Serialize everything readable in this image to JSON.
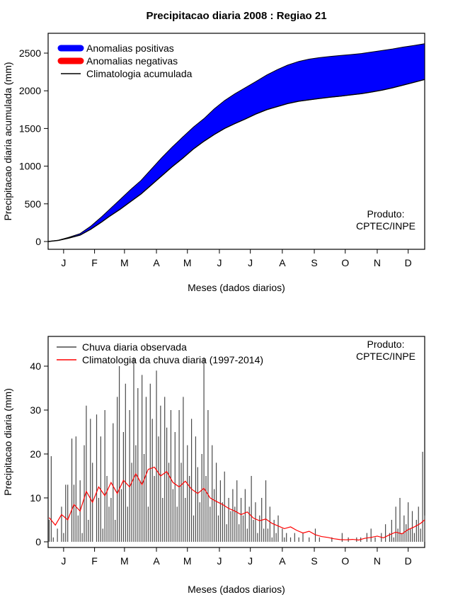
{
  "page": {
    "title": "Precipitacao diaria 2008 : Regiao 21"
  },
  "chart_data": [
    {
      "type": "area",
      "title": "Precipitacao diaria 2008 : Regiao 21",
      "xlabel": "Meses (dados diarios)",
      "ylabel": "Precipitacao diaria acumulada (mm)",
      "x_tick_labels": [
        "J",
        "F",
        "M",
        "A",
        "M",
        "J",
        "J",
        "A",
        "S",
        "O",
        "N",
        "D"
      ],
      "x_tick_days": [
        15,
        45,
        74,
        105,
        135,
        166,
        196,
        227,
        258,
        288,
        319,
        349
      ],
      "y_ticks": [
        0,
        500,
        1000,
        1500,
        2000,
        2500
      ],
      "xlim": [
        0,
        365
      ],
      "ylim": [
        0,
        2700
      ],
      "grid": false,
      "legend_position": "top-left",
      "legend": [
        {
          "label": "Anomalias positivas",
          "color": "#0000FF",
          "sample": "thick-bar"
        },
        {
          "label": "Anomalias negativas",
          "color": "#FF0000",
          "sample": "thick-bar"
        },
        {
          "label": "Climatologia acumulada",
          "color": "#000000",
          "sample": "line"
        }
      ],
      "annotation": [
        "Produto:",
        "CPTEC/INPE"
      ],
      "fill_between": {
        "upper": "Acumulado observado 2008",
        "lower": "Climatologia acumulada",
        "positive_color": "#0000FF",
        "negative_color": "#FF0000"
      },
      "series": [
        {
          "name": "Acumulado observado 2008",
          "color": "#000000",
          "x": [
            0,
            10,
            20,
            31,
            41,
            52,
            59,
            70,
            80,
            90,
            100,
            110,
            120,
            130,
            141,
            151,
            161,
            171,
            181,
            191,
            201,
            212,
            222,
            232,
            243,
            253,
            263,
            273,
            283,
            293,
            304,
            314,
            324,
            334,
            344,
            354,
            365
          ],
          "y": [
            0,
            18,
            55,
            105,
            200,
            330,
            420,
            560,
            690,
            810,
            960,
            1110,
            1250,
            1380,
            1520,
            1630,
            1760,
            1870,
            1960,
            2040,
            2120,
            2210,
            2280,
            2340,
            2390,
            2420,
            2440,
            2455,
            2468,
            2480,
            2495,
            2515,
            2535,
            2555,
            2580,
            2600,
            2625
          ]
        },
        {
          "name": "Climatologia acumulada",
          "color": "#000000",
          "x": [
            0,
            10,
            20,
            31,
            41,
            52,
            59,
            70,
            80,
            90,
            100,
            110,
            120,
            130,
            141,
            151,
            161,
            171,
            181,
            191,
            201,
            212,
            222,
            232,
            243,
            253,
            263,
            273,
            283,
            293,
            304,
            314,
            324,
            334,
            344,
            354,
            365
          ],
          "y": [
            0,
            15,
            45,
            85,
            160,
            260,
            330,
            430,
            530,
            630,
            750,
            870,
            990,
            1100,
            1230,
            1330,
            1420,
            1500,
            1565,
            1625,
            1690,
            1750,
            1790,
            1830,
            1862,
            1880,
            1898,
            1915,
            1928,
            1945,
            1962,
            1985,
            2010,
            2040,
            2075,
            2110,
            2150
          ]
        }
      ]
    },
    {
      "type": "bar",
      "title": "",
      "xlabel": "Meses (dados diarios)",
      "ylabel": "Precipitacao diaria (mm)",
      "x_tick_labels": [
        "J",
        "F",
        "M",
        "A",
        "M",
        "J",
        "J",
        "A",
        "S",
        "O",
        "N",
        "D"
      ],
      "x_tick_days": [
        15,
        45,
        74,
        105,
        135,
        166,
        196,
        227,
        258,
        288,
        319,
        349
      ],
      "y_ticks": [
        0,
        10,
        20,
        30,
        40
      ],
      "xlim": [
        0,
        365
      ],
      "ylim": [
        0,
        43
      ],
      "grid": false,
      "legend_position": "top-left",
      "legend": [
        {
          "label": "Chuva diaria observada",
          "color": "#4A4A4A",
          "sample": "line"
        },
        {
          "label": "Climatologia da chuva diaria (1997-2014)",
          "color": "#FF0000",
          "sample": "line"
        }
      ],
      "annotation": [
        "Produto:",
        "CPTEC/INPE"
      ],
      "bars": {
        "name": "Chuva diaria observada",
        "color": "#4A4A4A",
        "start_day": 1,
        "step_days": 2,
        "values": [
          5,
          19.5,
          1,
          0,
          3,
          0,
          8,
          2,
          13,
          13,
          0,
          23.5,
          13,
          24,
          6,
          14,
          2,
          22,
          31,
          5,
          28,
          18,
          0,
          29,
          10,
          24,
          3,
          30,
          15,
          8,
          10,
          27,
          5,
          33,
          40,
          12,
          25,
          36,
          8,
          30,
          18,
          42,
          22,
          35,
          14,
          38,
          20,
          33,
          8,
          36,
          28,
          15,
          39,
          24,
          31,
          10,
          33,
          26,
          18,
          30,
          12,
          25,
          8,
          30,
          18,
          33,
          10,
          22,
          15,
          28,
          6,
          24,
          17,
          9,
          20,
          42,
          15,
          30,
          8,
          22,
          12,
          18,
          6,
          14,
          9,
          16,
          4,
          10,
          7,
          12,
          8,
          14,
          4,
          10,
          6,
          12,
          3,
          8,
          15,
          5,
          9,
          2,
          6,
          10,
          3,
          14,
          3,
          8,
          1,
          5,
          2,
          6,
          0,
          3,
          1,
          2,
          0,
          1,
          0,
          2,
          0,
          1,
          0,
          2,
          0,
          0,
          1,
          0,
          0,
          3,
          0,
          1,
          0,
          0,
          0,
          0,
          0,
          1,
          0,
          0,
          0,
          0,
          2,
          0,
          0,
          1,
          0,
          0,
          0,
          1,
          0,
          1,
          0,
          0,
          2,
          0,
          3,
          0,
          1,
          0,
          0,
          2,
          0,
          4,
          0,
          2,
          5,
          1,
          8,
          3,
          10,
          2,
          6,
          4,
          9,
          3,
          7,
          2,
          5,
          8,
          3,
          20.5,
          6
        ]
      },
      "climatology_line": {
        "name": "Climatologia da chuva diaria (1997-2014)",
        "color": "#FF0000",
        "x": [
          1,
          7,
          13,
          19,
          25,
          31,
          37,
          43,
          49,
          55,
          61,
          67,
          73,
          79,
          85,
          91,
          97,
          103,
          109,
          115,
          121,
          127,
          133,
          139,
          145,
          151,
          157,
          163,
          169,
          175,
          181,
          187,
          193,
          199,
          205,
          211,
          217,
          223,
          229,
          235,
          241,
          247,
          253,
          259,
          265,
          271,
          277,
          283,
          289,
          295,
          301,
          307,
          313,
          319,
          325,
          331,
          337,
          343,
          349,
          355,
          361,
          365
        ],
        "y": [
          5.5,
          3.8,
          6.2,
          5,
          8.5,
          7,
          11.5,
          9,
          12.5,
          10.5,
          13.5,
          11,
          14,
          12.5,
          15.5,
          13,
          16.5,
          17,
          15,
          16,
          13.5,
          12.5,
          13.8,
          12,
          11,
          12.2,
          10,
          9.2,
          8.5,
          7.6,
          7,
          6.2,
          6.8,
          5.4,
          4.8,
          5.2,
          4.2,
          3.6,
          3,
          3.4,
          2.6,
          2,
          2.4,
          1.6,
          1.2,
          1,
          0.7,
          0.5,
          0.45,
          0.55,
          0.4,
          0.8,
          1,
          1.3,
          0.9,
          1.6,
          2.2,
          1.8,
          2.8,
          3.4,
          4.2,
          5
        ]
      }
    }
  ]
}
